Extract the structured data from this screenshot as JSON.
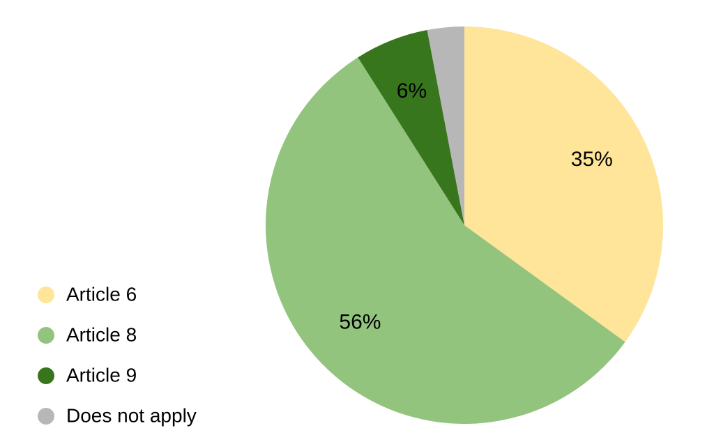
{
  "chart_data": {
    "type": "pie",
    "categories": [
      "Article 6",
      "Article 8",
      "Article 9",
      "Does not apply"
    ],
    "values": [
      35,
      56,
      6,
      3
    ],
    "value_labels": [
      "35%",
      "56%",
      "6%",
      null
    ],
    "colors": [
      "#fee599",
      "#93c47d",
      "#38761d",
      "#b7b7b7"
    ],
    "legend": "bottom-left"
  }
}
